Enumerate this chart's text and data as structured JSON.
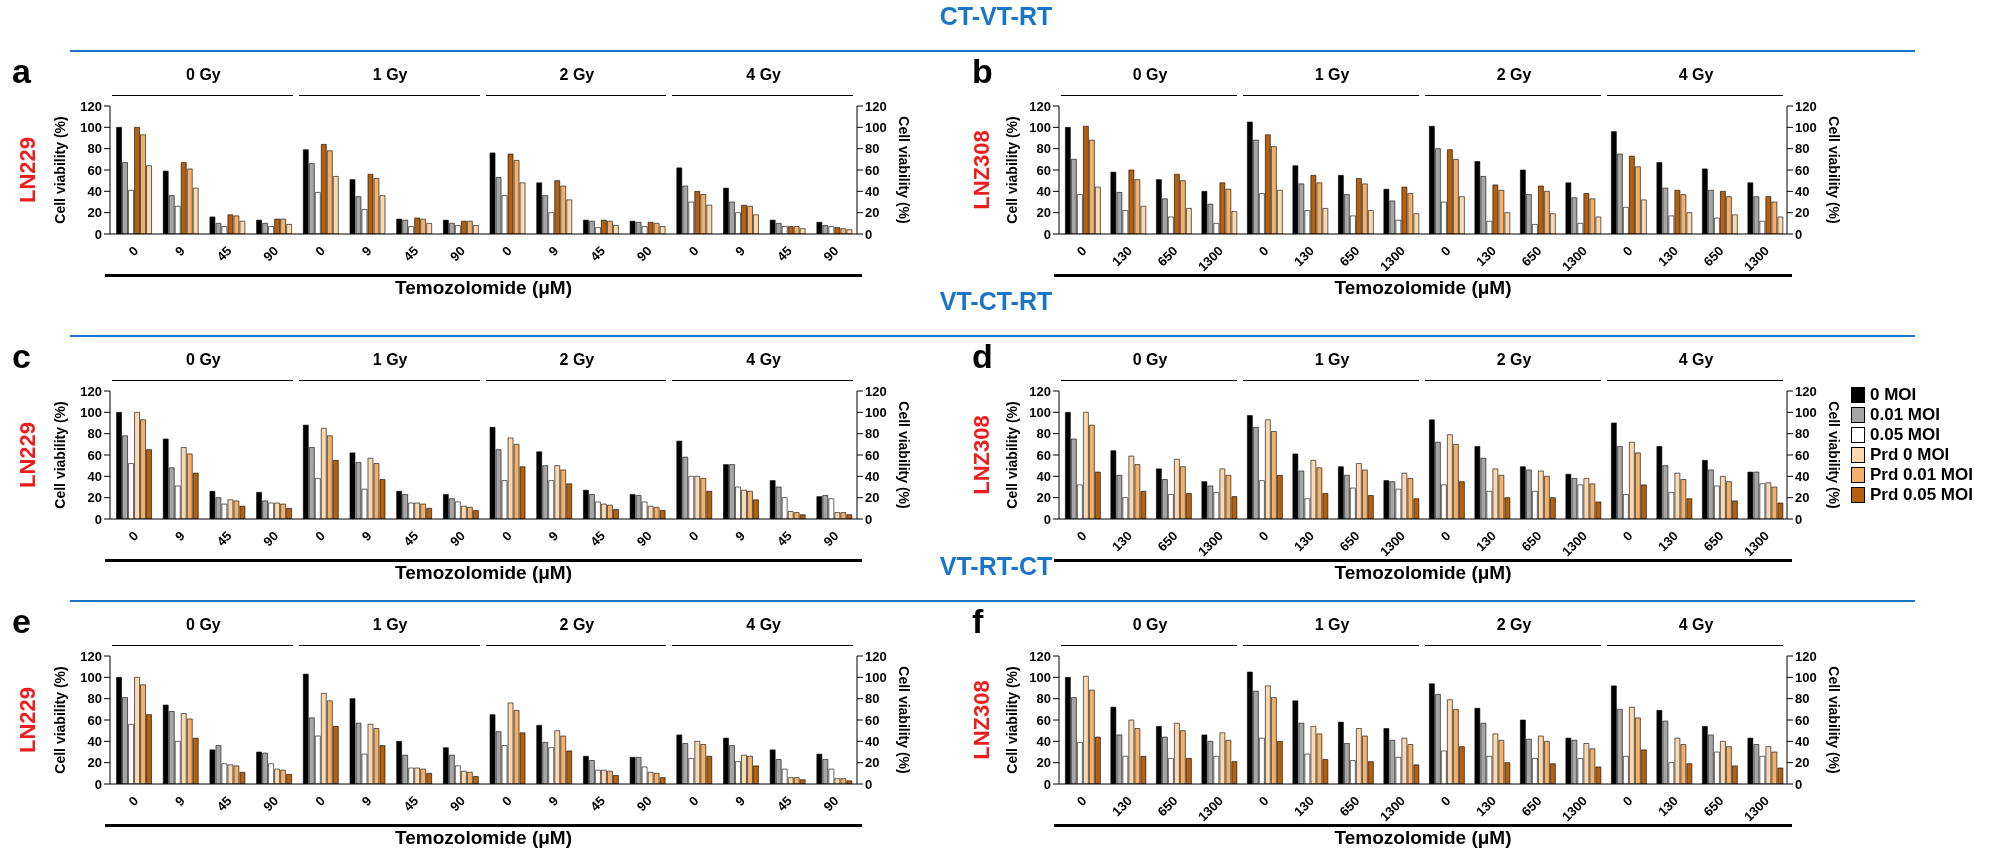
{
  "chart_data": [
    {
      "type": "bar",
      "categories": [
        "0",
        "9",
        "45",
        "90",
        "0",
        "9",
        "45",
        "90",
        "0",
        "9",
        "45",
        "90",
        "0",
        "9",
        "45",
        "90"
      ],
      "ylabel": "Cell viability (%)",
      "y2label": "Cell viability (%)",
      "xlabel": "Temozolomide (μM)",
      "ylim": [
        0,
        120
      ],
      "yticks": [
        0,
        20,
        40,
        60,
        80,
        100,
        120
      ],
      "y2lim": [
        0,
        120
      ],
      "y2ticks": [
        0,
        20,
        40,
        60,
        80,
        100,
        120
      ],
      "annotations": [
        "a",
        "LN229",
        "0 Gy",
        "1 Gy",
        "2 Gy",
        "4 Gy",
        "CT-VT-RT"
      ],
      "series": [
        {
          "color": "#000000",
          "values": [
            100,
            59,
            16,
            13,
            79,
            51,
            14,
            13,
            76,
            48,
            13,
            12,
            62,
            43,
            13,
            11
          ]
        },
        {
          "color": "#a6a6a6",
          "values": [
            67,
            36,
            10,
            10,
            66,
            35,
            13,
            10,
            53,
            36,
            12,
            11,
            45,
            30,
            10,
            8
          ]
        },
        {
          "color": "#ffffff",
          "values": [
            41,
            26,
            7,
            7,
            39,
            23,
            7,
            8,
            36,
            20,
            6,
            7,
            30,
            20,
            7,
            7
          ]
        },
        {
          "color": "#b5600f",
          "values": [
            100,
            67,
            18,
            14,
            84,
            56,
            15,
            12,
            75,
            50,
            13,
            11,
            40,
            27,
            7,
            6
          ]
        },
        {
          "color": "#f2b06b",
          "values": [
            93,
            61,
            17,
            14,
            78,
            52,
            14,
            12,
            69,
            45,
            12,
            10,
            37,
            26,
            7,
            5
          ]
        },
        {
          "color": "#fbd9b0",
          "values": [
            64,
            43,
            12,
            9,
            54,
            36,
            10,
            8,
            48,
            32,
            8,
            7,
            27,
            18,
            5,
            4
          ]
        }
      ]
    },
    {
      "type": "bar",
      "categories": [
        "0",
        "130",
        "650",
        "1300",
        "0",
        "130",
        "650",
        "1300",
        "0",
        "130",
        "650",
        "1300",
        "0",
        "130",
        "650",
        "1300"
      ],
      "ylabel": "Cell viability (%)",
      "y2label": "Cell viability (%)",
      "xlabel": "Temozolomide (μM)",
      "ylim": [
        0,
        120
      ],
      "yticks": [
        0,
        20,
        40,
        60,
        80,
        100,
        120
      ],
      "y2lim": [
        0,
        120
      ],
      "y2ticks": [
        0,
        20,
        40,
        60,
        80,
        100,
        120
      ],
      "annotations": [
        "b",
        "LNZ308",
        "0 Gy",
        "1 Gy",
        "2 Gy",
        "4 Gy"
      ],
      "series": [
        {
          "color": "#000000",
          "values": [
            100,
            58,
            51,
            40,
            105,
            64,
            55,
            42,
            101,
            68,
            60,
            48,
            96,
            67,
            61,
            48
          ]
        },
        {
          "color": "#a6a6a6",
          "values": [
            70,
            39,
            33,
            28,
            88,
            47,
            37,
            31,
            80,
            54,
            37,
            34,
            75,
            43,
            41,
            35
          ]
        },
        {
          "color": "#ffffff",
          "values": [
            37,
            22,
            16,
            10,
            38,
            22,
            17,
            13,
            30,
            12,
            9,
            10,
            25,
            17,
            15,
            12
          ]
        },
        {
          "color": "#b5600f",
          "values": [
            101,
            60,
            56,
            48,
            93,
            55,
            52,
            44,
            79,
            46,
            45,
            38,
            73,
            41,
            40,
            35
          ]
        },
        {
          "color": "#f2b06b",
          "values": [
            88,
            51,
            50,
            42,
            82,
            48,
            47,
            38,
            70,
            41,
            40,
            33,
            63,
            37,
            35,
            30
          ]
        },
        {
          "color": "#fbd9b0",
          "values": [
            44,
            26,
            24,
            21,
            41,
            24,
            22,
            19,
            35,
            20,
            19,
            16,
            32,
            20,
            18,
            16
          ]
        }
      ]
    },
    {
      "type": "bar",
      "categories": [
        "0",
        "9",
        "45",
        "90",
        "0",
        "9",
        "45",
        "90",
        "0",
        "9",
        "45",
        "90",
        "0",
        "9",
        "45",
        "90"
      ],
      "ylabel": "Cell viability (%)",
      "y2label": "Cell viability (%)",
      "xlabel": "Temozolomide (μM)",
      "ylim": [
        0,
        120
      ],
      "yticks": [
        0,
        20,
        40,
        60,
        80,
        100,
        120
      ],
      "y2lim": [
        0,
        120
      ],
      "y2ticks": [
        0,
        20,
        40,
        60,
        80,
        100,
        120
      ],
      "annotations": [
        "c",
        "LN229",
        "0 Gy",
        "1 Gy",
        "2 Gy",
        "4 Gy",
        "VT-CT-RT"
      ],
      "series": [
        {
          "color": "#000000",
          "values": [
            100,
            75,
            26,
            25,
            88,
            62,
            26,
            23,
            86,
            63,
            27,
            23,
            73,
            51,
            36,
            21
          ]
        },
        {
          "color": "#a6a6a6",
          "values": [
            78,
            48,
            20,
            17,
            67,
            53,
            23,
            19,
            65,
            50,
            23,
            22,
            58,
            51,
            30,
            22
          ]
        },
        {
          "color": "#ffffff",
          "values": [
            52,
            31,
            14,
            15,
            38,
            28,
            15,
            16,
            36,
            36,
            16,
            16,
            40,
            30,
            20,
            19
          ]
        },
        {
          "color": "#fbd9b0",
          "values": [
            100,
            67,
            18,
            15,
            85,
            57,
            15,
            12,
            76,
            50,
            14,
            12,
            40,
            27,
            7,
            6
          ]
        },
        {
          "color": "#f2b06b",
          "values": [
            93,
            61,
            17,
            14,
            78,
            52,
            14,
            11,
            70,
            46,
            13,
            11,
            38,
            26,
            6,
            6
          ]
        },
        {
          "color": "#b5600f",
          "values": [
            65,
            43,
            12,
            10,
            55,
            37,
            10,
            8,
            49,
            33,
            9,
            8,
            26,
            18,
            4,
            4
          ]
        }
      ]
    },
    {
      "type": "bar",
      "categories": [
        "0",
        "130",
        "650",
        "1300",
        "0",
        "130",
        "650",
        "1300",
        "0",
        "130",
        "650",
        "1300",
        "0",
        "130",
        "650",
        "1300"
      ],
      "ylabel": "Cell viability (%)",
      "y2label": "Cell viability (%)",
      "xlabel": "Temozolomide (μM)",
      "ylim": [
        0,
        120
      ],
      "yticks": [
        0,
        20,
        40,
        60,
        80,
        100,
        120
      ],
      "y2lim": [
        0,
        120
      ],
      "y2ticks": [
        0,
        20,
        40,
        60,
        80,
        100,
        120
      ],
      "legend": "right",
      "annotations": [
        "d",
        "LNZ308",
        "0 Gy",
        "1 Gy",
        "2 Gy",
        "4 Gy"
      ],
      "series": [
        {
          "name": "0 MOI",
          "color": "#000000",
          "values": [
            100,
            64,
            47,
            35,
            97,
            61,
            49,
            36,
            93,
            68,
            49,
            42,
            90,
            68,
            55,
            44
          ]
        },
        {
          "name": "0.01 MOI",
          "color": "#a6a6a6",
          "values": [
            75,
            41,
            37,
            31,
            86,
            45,
            41,
            35,
            72,
            57,
            46,
            38,
            68,
            50,
            46,
            44
          ]
        },
        {
          "name": "0.05 MOI",
          "color": "#ffffff",
          "values": [
            32,
            20,
            23,
            25,
            36,
            19,
            29,
            28,
            32,
            26,
            26,
            32,
            23,
            25,
            31,
            33
          ]
        },
        {
          "name": "Prd 0 MOI",
          "color": "#fbd9b0",
          "values": [
            100,
            59,
            56,
            47,
            93,
            55,
            52,
            43,
            79,
            47,
            45,
            38,
            72,
            43,
            40,
            34
          ]
        },
        {
          "name": "Prd 0.01 MOI",
          "color": "#f2b06b",
          "values": [
            88,
            51,
            49,
            41,
            82,
            48,
            46,
            38,
            70,
            41,
            40,
            33,
            62,
            37,
            35,
            30
          ]
        },
        {
          "name": "Prd 0.05 MOI",
          "color": "#b5600f",
          "values": [
            44,
            26,
            24,
            21,
            41,
            24,
            22,
            19,
            35,
            20,
            20,
            16,
            32,
            19,
            17,
            15
          ]
        }
      ]
    },
    {
      "type": "bar",
      "categories": [
        "0",
        "9",
        "45",
        "90",
        "0",
        "9",
        "45",
        "90",
        "0",
        "9",
        "45",
        "90",
        "0",
        "9",
        "45",
        "90"
      ],
      "ylabel": "Cell viability (%)",
      "y2label": "Cell viability (%)",
      "xlabel": "Temozolomide (μM)",
      "ylim": [
        0,
        120
      ],
      "yticks": [
        0,
        20,
        40,
        60,
        80,
        100,
        120
      ],
      "y2lim": [
        0,
        120
      ],
      "y2ticks": [
        0,
        20,
        40,
        60,
        80,
        100,
        120
      ],
      "annotations": [
        "e",
        "LN229",
        "0 Gy",
        "1 Gy",
        "2 Gy",
        "4 Gy",
        "VT-RT-CT"
      ],
      "series": [
        {
          "color": "#000000",
          "values": [
            100,
            74,
            32,
            30,
            103,
            80,
            40,
            34,
            65,
            55,
            26,
            25,
            46,
            43,
            32,
            28
          ]
        },
        {
          "color": "#a6a6a6",
          "values": [
            81,
            68,
            36,
            29,
            62,
            57,
            27,
            27,
            49,
            39,
            22,
            25,
            38,
            36,
            23,
            23
          ]
        },
        {
          "color": "#ffffff",
          "values": [
            56,
            40,
            19,
            19,
            45,
            28,
            15,
            17,
            36,
            34,
            13,
            16,
            24,
            21,
            14,
            14
          ]
        },
        {
          "color": "#fbd9b0",
          "values": [
            100,
            66,
            18,
            14,
            85,
            56,
            15,
            12,
            76,
            50,
            13,
            11,
            40,
            27,
            6,
            5
          ]
        },
        {
          "color": "#f2b06b",
          "values": [
            93,
            61,
            17,
            13,
            78,
            52,
            14,
            11,
            69,
            45,
            12,
            10,
            37,
            26,
            6,
            5
          ]
        },
        {
          "color": "#b5600f",
          "values": [
            65,
            43,
            11,
            9,
            54,
            36,
            10,
            7,
            48,
            31,
            8,
            6,
            26,
            17,
            4,
            3
          ]
        }
      ]
    },
    {
      "type": "bar",
      "categories": [
        "0",
        "130",
        "650",
        "1300",
        "0",
        "130",
        "650",
        "1300",
        "0",
        "130",
        "650",
        "1300",
        "0",
        "130",
        "650",
        "1300"
      ],
      "ylabel": "Cell viability (%)",
      "y2label": "Cell viability (%)",
      "xlabel": "Temozolomide (μM)",
      "ylim": [
        0,
        120
      ],
      "yticks": [
        0,
        20,
        40,
        60,
        80,
        100,
        120
      ],
      "y2lim": [
        0,
        120
      ],
      "y2ticks": [
        0,
        20,
        40,
        60,
        80,
        100,
        120
      ],
      "annotations": [
        "f",
        "LNZ308",
        "0 Gy",
        "1 Gy",
        "2 Gy",
        "4 Gy"
      ],
      "series": [
        {
          "color": "#000000",
          "values": [
            100,
            72,
            54,
            46,
            105,
            78,
            58,
            52,
            94,
            71,
            60,
            43,
            92,
            69,
            54,
            43
          ]
        },
        {
          "color": "#a6a6a6",
          "values": [
            81,
            46,
            44,
            40,
            87,
            57,
            38,
            41,
            84,
            57,
            42,
            41,
            70,
            59,
            46,
            37
          ]
        },
        {
          "color": "#ffffff",
          "values": [
            39,
            26,
            24,
            26,
            43,
            28,
            22,
            25,
            31,
            26,
            24,
            24,
            26,
            20,
            30,
            26
          ]
        },
        {
          "color": "#fbd9b0",
          "values": [
            101,
            60,
            57,
            48,
            92,
            54,
            52,
            43,
            79,
            47,
            45,
            38,
            72,
            43,
            40,
            35
          ]
        },
        {
          "color": "#f2b06b",
          "values": [
            88,
            52,
            50,
            41,
            81,
            47,
            45,
            37,
            70,
            41,
            40,
            33,
            62,
            37,
            35,
            30
          ]
        },
        {
          "color": "#b5600f",
          "values": [
            44,
            26,
            24,
            21,
            40,
            23,
            21,
            18,
            35,
            20,
            19,
            16,
            32,
            19,
            17,
            15
          ]
        }
      ]
    }
  ]
}
